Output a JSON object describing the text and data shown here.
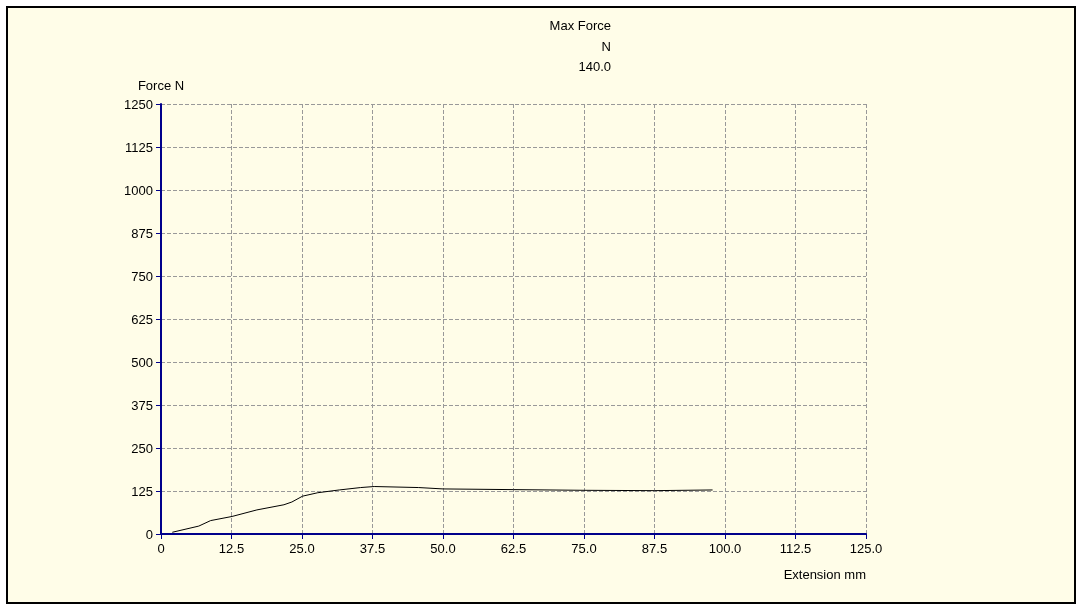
{
  "chart_data": {
    "type": "line",
    "title": "Max Force",
    "subtitle": "N\n140.0",
    "xlabel": "Extension mm",
    "ylabel": "Force N",
    "series": [
      {
        "color": "#000000",
        "x": [
          2.0,
          6.7,
          8.8,
          12.6,
          17,
          21.8,
          23.2,
          25.1,
          27.8,
          31.6,
          35.4,
          37.8,
          45.7,
          50,
          62.5,
          75,
          87.5,
          97.8
        ],
        "values": [
          5,
          23,
          39,
          51,
          70,
          85,
          93,
          110,
          120,
          128,
          135,
          138,
          135,
          131,
          129,
          127,
          126,
          128
        ]
      }
    ],
    "xlim": [
      0,
      125
    ],
    "xticks": [
      0,
      12.5,
      {
        "value": 25,
        "label": "25.0"
      },
      37.5,
      {
        "value": 50,
        "label": "50.0"
      },
      62.5,
      {
        "value": 75,
        "label": "75.0"
      },
      87.5,
      {
        "value": 100,
        "label": "100.0"
      },
      112.5,
      {
        "value": 125,
        "label": "125.0"
      }
    ],
    "ylim": [
      0,
      1250
    ],
    "yticks": [
      0,
      125,
      250,
      375,
      500,
      625,
      750,
      875,
      1000,
      1125,
      1250
    ],
    "grid": true,
    "marker": "none",
    "line_style": "solid"
  }
}
